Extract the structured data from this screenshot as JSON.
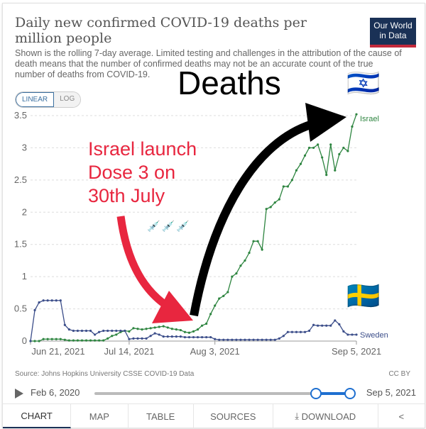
{
  "header": {
    "title": "Daily new confirmed COVID-19 deaths per million people",
    "subtitle": "Shown is the rolling 7-day average. Limited testing and challenges in the attribution of the cause of death means that the number of confirmed deaths may not be an accurate count of the true number of deaths from COVID-19.",
    "logo": "Our World in Data"
  },
  "scale_toggle": {
    "linear": "LINEAR",
    "log": "LOG",
    "selected": "LINEAR"
  },
  "annotations": {
    "deaths": "Deaths",
    "dose3": [
      "Israel launch",
      "Dose 3 on",
      "30th July"
    ],
    "israel_flag": "🇮🇱",
    "sweden_flag": "🇸🇪",
    "syringes": "💉💉💉"
  },
  "chart_data": {
    "type": "line",
    "title": "Daily new confirmed COVID-19 deaths per million people",
    "yticks": [
      "0",
      "0.5",
      "1",
      "1.5",
      "2",
      "2.5",
      "3",
      "3.5"
    ],
    "ylim": [
      0,
      3.5
    ],
    "xticks": [
      {
        "date": "2021-06-21",
        "label": "Jun 21, 2021"
      },
      {
        "date": "2021-07-14",
        "label": "Jul 14, 2021"
      },
      {
        "date": "2021-08-03",
        "label": "Aug 3, 2021"
      },
      {
        "date": "2021-09-05",
        "label": "Sep 5, 2021"
      }
    ],
    "xlim": [
      "2021-06-21",
      "2021-09-05"
    ],
    "grid": "horizontal dashed",
    "series": [
      {
        "name": "Israel",
        "color": "#2e8540",
        "values": [
          0,
          0,
          0,
          0.03,
          0.03,
          0.03,
          0.03,
          0.03,
          0.02,
          0.01,
          0.01,
          0.01,
          0.01,
          0.01,
          0.01,
          0.01,
          0.01,
          0.01,
          0.04,
          0.08,
          0.1,
          0.14,
          0.16,
          0.15,
          0.2,
          0.19,
          0.18,
          0.19,
          0.2,
          0.21,
          0.22,
          0.23,
          0.21,
          0.19,
          0.18,
          0.17,
          0.14,
          0.13,
          0.15,
          0.18,
          0.24,
          0.27,
          0.42,
          0.55,
          0.66,
          0.7,
          0.76,
          1.0,
          1.05,
          1.17,
          1.25,
          1.37,
          1.55,
          1.55,
          1.42,
          2.05,
          2.08,
          2.15,
          2.2,
          2.4,
          2.4,
          2.5,
          2.65,
          2.75,
          2.88,
          3.0,
          3.0,
          3.05,
          2.85,
          2.58,
          3.05,
          2.65,
          2.9,
          3.0,
          2.95,
          3.33,
          3.52
        ]
      },
      {
        "name": "Sweden",
        "color": "#3c4e8a",
        "values": [
          0,
          0.48,
          0.6,
          0.63,
          0.63,
          0.63,
          0.63,
          0.63,
          0.25,
          0.18,
          0.16,
          0.16,
          0.16,
          0.16,
          0.16,
          0.1,
          0.14,
          0.16,
          0.16,
          0.16,
          0.16,
          0.16,
          0.16,
          0.03,
          0.04,
          0.04,
          0.04,
          0.04,
          0.08,
          0.12,
          0.1,
          0.07,
          0.07,
          0.07,
          0.07,
          0.07,
          0.06,
          0.06,
          0.06,
          0.06,
          0.06,
          0.06,
          0.06,
          0.03,
          0.02,
          0.02,
          0.02,
          0.02,
          0.02,
          0.02,
          0.02,
          0.02,
          0.02,
          0.02,
          0.02,
          0.02,
          0.02,
          0.02,
          0.04,
          0.08,
          0.14,
          0.14,
          0.14,
          0.14,
          0.14,
          0.16,
          0.25,
          0.24,
          0.24,
          0.24,
          0.24,
          0.32,
          0.26,
          0.15,
          0.1,
          0.1,
          0.1
        ]
      }
    ]
  },
  "footer": {
    "source": "Source: Johns Hopkins University CSSE COVID-19 Data",
    "license": "CC BY"
  },
  "timeline": {
    "start": "Feb 6, 2020",
    "end": "Sep 5, 2021"
  },
  "tabs": [
    {
      "label": "CHART",
      "active": true
    },
    {
      "label": "MAP"
    },
    {
      "label": "TABLE"
    },
    {
      "label": "SOURCES"
    },
    {
      "label": "DOWNLOAD",
      "icon": "download-icon"
    },
    {
      "label": "",
      "icon": "share-icon"
    }
  ]
}
